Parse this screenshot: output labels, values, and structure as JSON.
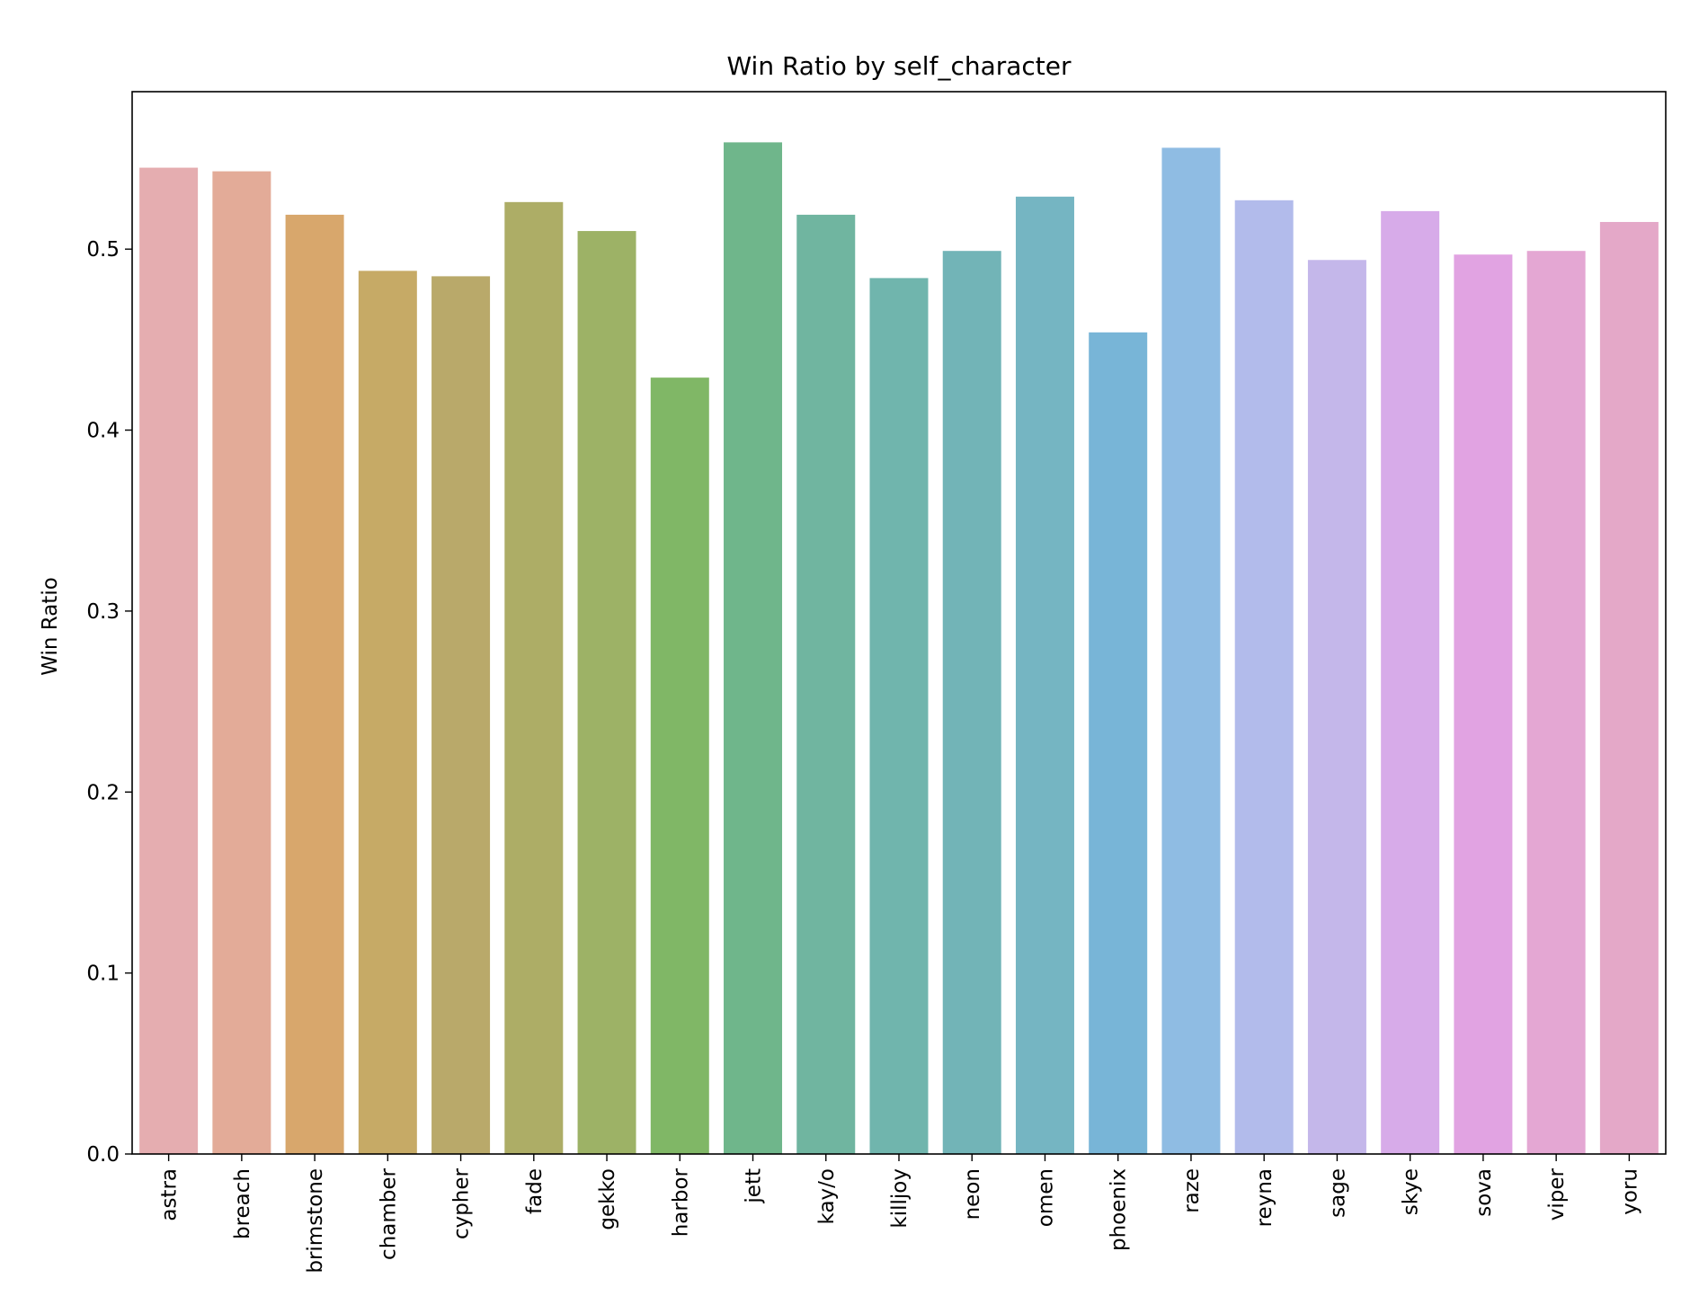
{
  "chart_data": {
    "type": "bar",
    "title": "Win Ratio by self_character",
    "xlabel": "",
    "ylabel": "Win Ratio",
    "ylim": [
      0,
      0.587
    ],
    "yticks": [
      0.0,
      0.1,
      0.2,
      0.3,
      0.4,
      0.5
    ],
    "ytick_labels": [
      "0.0",
      "0.1",
      "0.2",
      "0.3",
      "0.4",
      "0.5"
    ],
    "grid": false,
    "categories": [
      "astra",
      "breach",
      "brimstone",
      "chamber",
      "cypher",
      "fade",
      "gekko",
      "harbor",
      "jett",
      "kay/o",
      "killjoy",
      "neon",
      "omen",
      "phoenix",
      "raze",
      "reyna",
      "sage",
      "skye",
      "sova",
      "viper",
      "yoru"
    ],
    "values": [
      0.545,
      0.543,
      0.519,
      0.488,
      0.485,
      0.526,
      0.51,
      0.429,
      0.559,
      0.519,
      0.484,
      0.499,
      0.529,
      0.454,
      0.556,
      0.527,
      0.494,
      0.521,
      0.497,
      0.499,
      0.515
    ],
    "colors": [
      "#e5adb0",
      "#e3ab98",
      "#d8a76c",
      "#c6aa66",
      "#b9a96a",
      "#adad66",
      "#9db266",
      "#80b766",
      "#6fb68b",
      "#70b5a0",
      "#70b5ad",
      "#72b4b7",
      "#75b5c2",
      "#78b5d7",
      "#8fbce3",
      "#b2bbeb",
      "#c4b7ea",
      "#d7abe9",
      "#e1a3e2",
      "#e4a7d3",
      "#e4a8c8"
    ]
  }
}
